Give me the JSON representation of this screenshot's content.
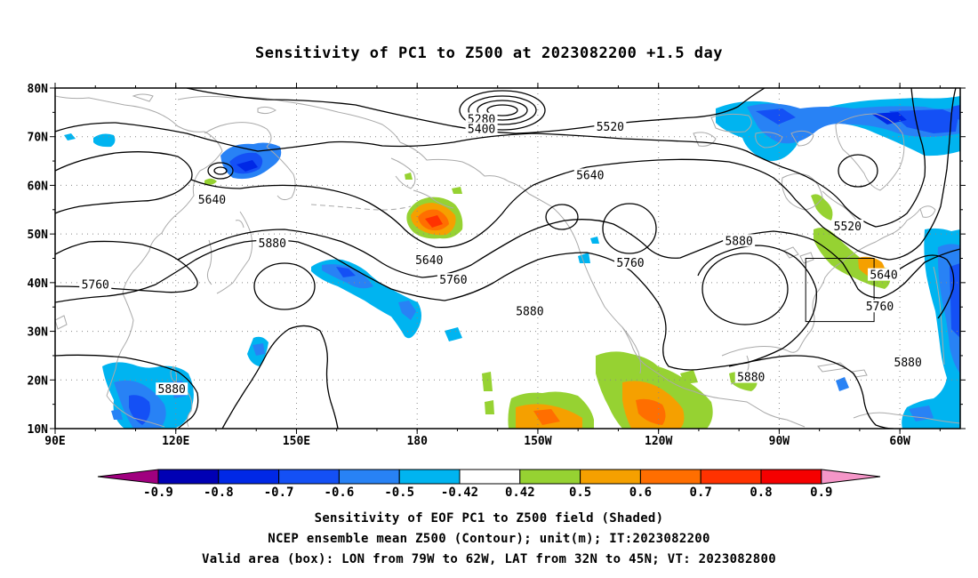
{
  "title": "Sensitivity of PC1 to Z500 at 2023082200 +1.5 day",
  "map": {
    "lat_labels": [
      "80N",
      "70N",
      "60N",
      "50N",
      "40N",
      "30N",
      "20N",
      "10N"
    ],
    "lon_labels": [
      "90E",
      "120E",
      "150E",
      "180",
      "150W",
      "120W",
      "90W",
      "60W"
    ],
    "contour_labels": [
      {
        "text": "5280",
        "lon": -164,
        "lat": 73.5
      },
      {
        "text": "5400",
        "lon": -164,
        "lat": 71.5
      },
      {
        "text": "5520",
        "lon": -132,
        "lat": 72
      },
      {
        "text": "5640",
        "lon": -137,
        "lat": 62
      },
      {
        "text": "5640",
        "lon": 129,
        "lat": 57
      },
      {
        "text": "5640",
        "lon": -177,
        "lat": 44.5
      },
      {
        "text": "5520",
        "lon": -73,
        "lat": 51.5
      },
      {
        "text": "5640",
        "lon": -64,
        "lat": 41.5
      },
      {
        "text": "5760",
        "lon": -65,
        "lat": 35
      },
      {
        "text": "5760",
        "lon": 100,
        "lat": 39.5
      },
      {
        "text": "5760",
        "lon": -171,
        "lat": 40.5
      },
      {
        "text": "5760",
        "lon": -127,
        "lat": 44
      },
      {
        "text": "5880",
        "lon": 144,
        "lat": 48
      },
      {
        "text": "5880",
        "lon": -100,
        "lat": 48.5
      },
      {
        "text": "5880",
        "lon": -152,
        "lat": 34
      },
      {
        "text": "5880",
        "lon": -97,
        "lat": 20.5
      },
      {
        "text": "5880",
        "lon": -58,
        "lat": 23.5
      },
      {
        "text": "5880",
        "lon": 119,
        "lat": 18
      }
    ],
    "valid_box": {
      "lon_w": -79,
      "lon_e": -62,
      "lat_s": 32,
      "lat_n": 45
    }
  },
  "colorbar": {
    "labels": [
      "-0.9",
      "-0.8",
      "-0.7",
      "-0.6",
      "-0.5",
      "-0.42",
      "0.42",
      "0.5",
      "0.6",
      "0.7",
      "0.8",
      "0.9"
    ],
    "colors": [
      "#a0007f",
      "#0000b4",
      "#0028e6",
      "#1450f5",
      "#2882f5",
      "#00b4f0",
      "#ffffff",
      "#96d232",
      "#f5a000",
      "#ff6e00",
      "#ff3200",
      "#f50000",
      "#f596c8"
    ]
  },
  "captions": {
    "line1": "Sensitivity of EOF PC1 to Z500 field (Shaded)",
    "line2": "NCEP ensemble mean Z500 (Contour); unit(m); IT:2023082200",
    "line3": "Valid area (box): LON from 79W to 62W, LAT from 32N to 45N; VT: 2023082800"
  }
}
